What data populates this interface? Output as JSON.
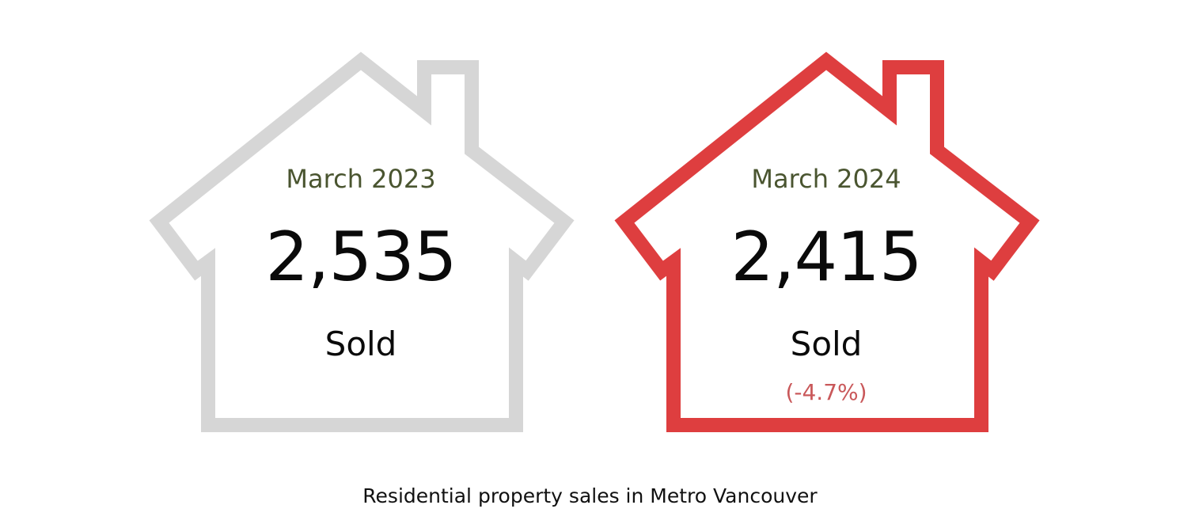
{
  "cards": [
    {
      "period": "March 2023",
      "count": "2,535",
      "status": "Sold",
      "change": "",
      "outline_color": "#d6d6d6"
    },
    {
      "period": "March 2024",
      "count": "2,415",
      "status": "Sold",
      "change": "(-4.7%)",
      "outline_color": "#de3e3f"
    }
  ],
  "caption": "Residential property sales in Metro Vancouver",
  "colors": {
    "period_text": "#4a5530",
    "change_text": "#c9585a",
    "count_text": "#0a0a0a"
  }
}
